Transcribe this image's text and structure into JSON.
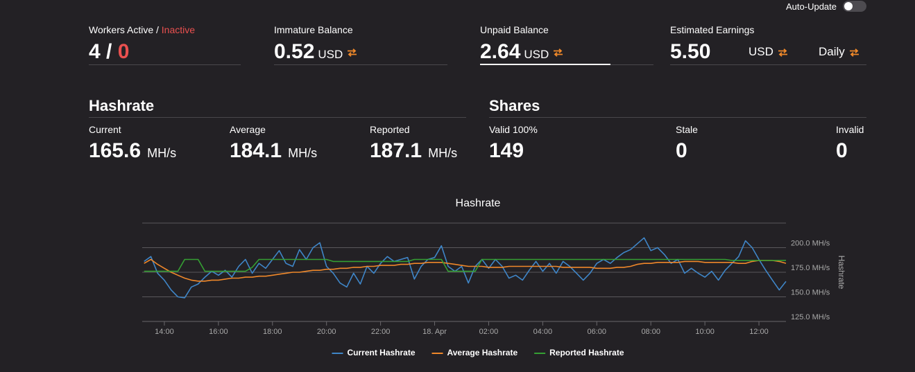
{
  "header": {
    "auto_update": "Auto-Update"
  },
  "workers": {
    "label": "Workers Active",
    "label_separator": "/",
    "inactive_label": "Inactive",
    "active": "4",
    "value_separator": "/",
    "inactive": "0"
  },
  "balances": [
    {
      "label": "Immature Balance",
      "value": "0.52",
      "unit": "USD"
    },
    {
      "label": "Unpaid Balance",
      "value": "2.64",
      "unit": "USD"
    },
    {
      "label": "Estimated Earnings",
      "value": "5.50",
      "unit": "USD",
      "period": "Daily"
    }
  ],
  "hashrate": {
    "title": "Hashrate",
    "items": [
      {
        "label": "Current",
        "value": "165.6",
        "unit": "MH/s"
      },
      {
        "label": "Average",
        "value": "184.1",
        "unit": "MH/s"
      },
      {
        "label": "Reported",
        "value": "187.1",
        "unit": "MH/s"
      }
    ]
  },
  "shares": {
    "title": "Shares",
    "items": [
      {
        "label": "Valid 100%",
        "value": "149"
      },
      {
        "label": "Stale",
        "value": "0"
      },
      {
        "label": "Invalid",
        "value": "0"
      }
    ]
  },
  "chart_data": {
    "type": "line",
    "title": "Hashrate",
    "y_label": "Hashrate",
    "legend": "bottom",
    "grid": true,
    "x": [
      13.25,
      13.5,
      13.75,
      14,
      14.25,
      14.5,
      14.75,
      15,
      15.25,
      15.5,
      15.75,
      16,
      16.25,
      16.5,
      16.75,
      17,
      17.25,
      17.5,
      17.75,
      18,
      18.25,
      18.5,
      18.75,
      19,
      19.25,
      19.5,
      19.75,
      20,
      20.25,
      20.5,
      20.75,
      21,
      21.25,
      21.5,
      21.75,
      22,
      22.25,
      22.5,
      22.75,
      23,
      23.25,
      23.5,
      23.75,
      24,
      24.25,
      24.5,
      24.75,
      25,
      25.25,
      25.5,
      25.75,
      26,
      26.25,
      26.5,
      26.75,
      27,
      27.25,
      27.5,
      27.75,
      28,
      28.25,
      28.5,
      28.75,
      29,
      29.25,
      29.5,
      29.75,
      30,
      30.25,
      30.5,
      30.75,
      31,
      31.25,
      31.5,
      31.75,
      32,
      32.25,
      32.5,
      32.75,
      33,
      33.25,
      33.5,
      33.75,
      34,
      34.25,
      34.5,
      34.75,
      35,
      35.25,
      35.5,
      35.75,
      36,
      36.25,
      36.5,
      36.75,
      37
    ],
    "series": [
      {
        "name": "Current Hashrate",
        "color": "#3f86c8",
        "values": [
          186,
          191,
          174,
          167,
          157,
          150,
          149,
          160,
          163,
          170,
          176,
          172,
          177,
          170,
          181,
          188,
          174,
          184,
          179,
          188,
          197,
          184,
          181,
          198,
          188,
          200,
          205,
          181,
          174,
          164,
          160,
          174,
          163,
          181,
          174,
          184,
          191,
          186,
          188,
          190,
          168,
          181,
          188,
          190,
          202,
          181,
          176,
          181,
          164,
          181,
          188,
          179,
          188,
          181,
          169,
          172,
          167,
          177,
          186,
          176,
          184,
          174,
          186,
          181,
          174,
          167,
          174,
          184,
          188,
          184,
          190,
          195,
          198,
          204,
          210,
          197,
          200,
          193,
          184,
          188,
          174,
          179,
          174,
          170,
          176,
          167,
          177,
          184,
          191,
          207,
          200,
          188,
          177,
          167,
          157,
          165.6
        ]
      },
      {
        "name": "Average Hashrate",
        "color": "#f0882a",
        "values": [
          184,
          188,
          183,
          179,
          175,
          172,
          169,
          167,
          166,
          166,
          167,
          167,
          168,
          169,
          169,
          170,
          170,
          171,
          171,
          172,
          173,
          174,
          175,
          175,
          176,
          177,
          177,
          178,
          178,
          179,
          179,
          180,
          180,
          181,
          181,
          182,
          182,
          182,
          183,
          183,
          184,
          184,
          185,
          185,
          185,
          184,
          183,
          182,
          181,
          181,
          181,
          180,
          180,
          180,
          181,
          181,
          181,
          181,
          181,
          181,
          181,
          181,
          180,
          180,
          180,
          180,
          180,
          179,
          179,
          179,
          180,
          180,
          181,
          183,
          184,
          184,
          185,
          185,
          185,
          185,
          186,
          186,
          186,
          185,
          185,
          185,
          185,
          185,
          184,
          184,
          186,
          187,
          187,
          187,
          186,
          184.1
        ]
      },
      {
        "name": "Reported Hashrate",
        "color": "#35a033",
        "values": [
          176,
          176,
          176,
          176,
          176,
          176,
          188,
          188,
          188,
          176,
          176,
          176,
          176,
          176,
          176,
          176,
          180,
          188,
          188,
          188,
          188,
          188,
          188,
          188,
          188,
          188,
          188,
          188,
          186,
          186,
          186,
          186,
          186,
          186,
          186,
          186,
          186,
          186,
          186,
          186,
          188,
          188,
          188,
          188,
          188,
          176,
          176,
          176,
          176,
          176,
          188,
          188,
          188,
          188,
          188,
          188,
          188,
          188,
          188,
          188,
          188,
          188,
          188,
          188,
          188,
          188,
          188,
          188,
          188,
          188,
          188,
          188,
          188,
          188,
          188,
          188,
          188,
          188,
          188,
          188,
          188,
          188,
          188,
          188,
          188,
          188,
          188,
          187,
          187,
          187,
          187,
          187,
          187,
          187,
          187,
          187.1
        ]
      }
    ],
    "xlim": [
      13.18,
      37.0
    ],
    "xticks": [
      {
        "value": 14,
        "label": "14:00"
      },
      {
        "value": 16,
        "label": "16:00"
      },
      {
        "value": 18,
        "label": "18:00"
      },
      {
        "value": 20,
        "label": "20:00"
      },
      {
        "value": 22,
        "label": "22:00"
      },
      {
        "value": 24,
        "label": "18. Apr"
      },
      {
        "value": 26,
        "label": "02:00"
      },
      {
        "value": 28,
        "label": "04:00"
      },
      {
        "value": 30,
        "label": "06:00"
      },
      {
        "value": 32,
        "label": "08:00"
      },
      {
        "value": 34,
        "label": "10:00"
      },
      {
        "value": 36,
        "label": "12:00"
      }
    ],
    "ylim": [
      125,
      225
    ],
    "yticks": [
      {
        "value": 125,
        "label": "125.0 MH/s"
      },
      {
        "value": 150,
        "label": "150.0 MH/s"
      },
      {
        "value": 175,
        "label": "175.0 MH/s"
      },
      {
        "value": 200,
        "label": "200.0 MH/s"
      }
    ]
  }
}
